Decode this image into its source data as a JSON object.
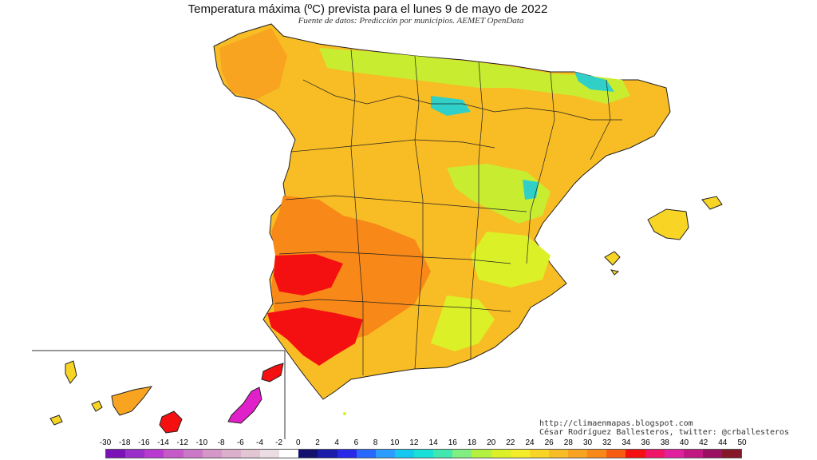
{
  "title": "Temperatura máxima (ºC) prevista para el lunes 9 de mayo de 2022",
  "subtitle": "Fuente de datos: Predicción por municipios. AEMET OpenData",
  "credits": {
    "url": "http://climaenmapas.blogspot.com",
    "author": "César Rodríguez Ballesteros, twitter: @crballesteros"
  },
  "legend": {
    "ticks": [
      "-30",
      "-18",
      "-16",
      "-14",
      "-12",
      "-10",
      "-8",
      "-6",
      "-4",
      "-2",
      "0",
      "2",
      "4",
      "6",
      "8",
      "10",
      "12",
      "14",
      "16",
      "18",
      "20",
      "22",
      "24",
      "26",
      "28",
      "30",
      "32",
      "34",
      "36",
      "38",
      "40",
      "42",
      "44",
      "50"
    ],
    "colors": [
      "#7a12b8",
      "#9a2ec8",
      "#b83ad0",
      "#c65ac8",
      "#cc78c8",
      "#d596c8",
      "#dcb0cc",
      "#e2c6d4",
      "#ecdde4",
      "#ffffff",
      "#12126e",
      "#1c1caa",
      "#2828e8",
      "#2868ff",
      "#2c9cff",
      "#14c8f0",
      "#18e0d8",
      "#40e8b0",
      "#80ee80",
      "#b4f040",
      "#dcf028",
      "#f4ec28",
      "#f8d424",
      "#f8bc24",
      "#f8a420",
      "#f88818",
      "#f85c10",
      "#f41010",
      "#f01468",
      "#e0209c",
      "#c01880",
      "#9c1064",
      "#841828"
    ]
  },
  "colors": {
    "hot": "#f41010",
    "warm": "#f88818",
    "mild": "#f8bc24",
    "cool": "#c8ec30",
    "cold": "#30d0c8",
    "very_hot": "#e020c8"
  }
}
